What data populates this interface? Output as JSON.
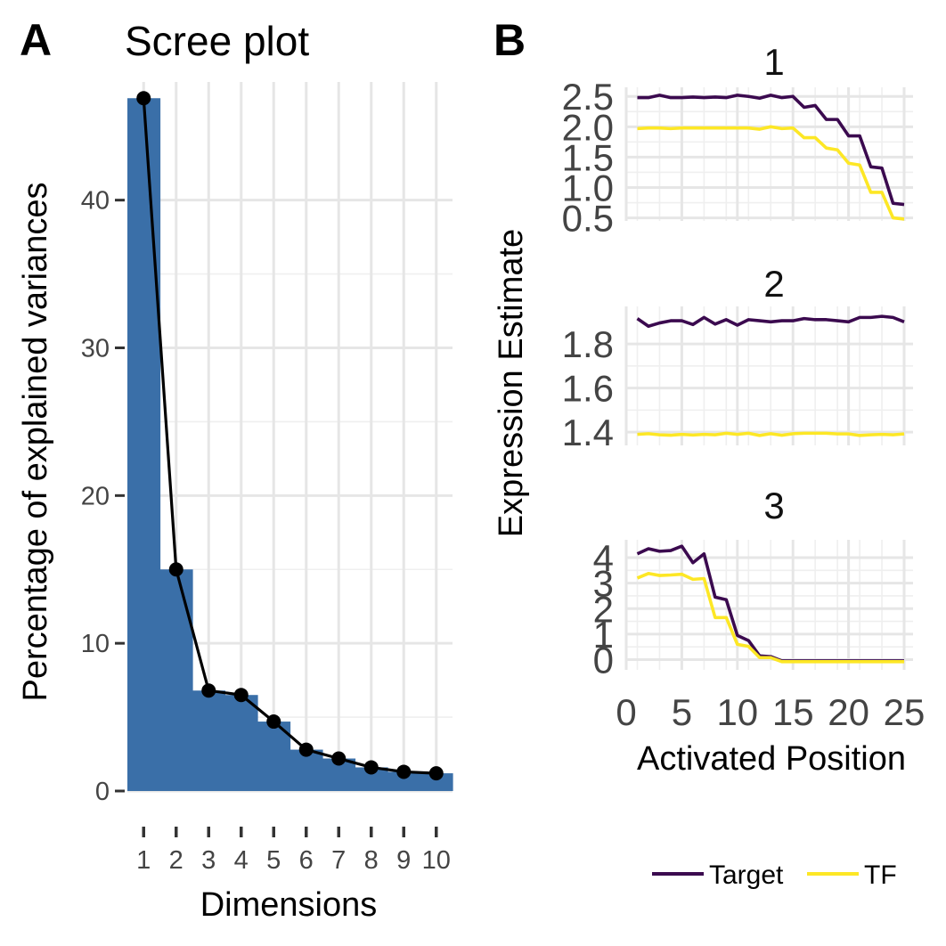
{
  "panel_a": {
    "letter": "A",
    "title": "Scree plot",
    "bar_color": "#3a6fa8",
    "chart_data": {
      "type": "bar",
      "categories": [
        "1",
        "2",
        "3",
        "4",
        "5",
        "6",
        "7",
        "8",
        "9",
        "10"
      ],
      "values": [
        46.9,
        15.0,
        6.8,
        6.5,
        4.7,
        2.8,
        2.2,
        1.6,
        1.3,
        1.2
      ],
      "xlabel": "Dimensions",
      "ylabel": "Percentage of explained variances",
      "ylim": [
        0,
        48
      ],
      "yticks": [
        0,
        10,
        20,
        30,
        40
      ],
      "grid": true,
      "overlay": "line with points"
    }
  },
  "panel_b": {
    "letter": "B",
    "xlabel": "Activated Position",
    "ylabel": "Expression Estimate",
    "xticks": [
      0,
      5,
      10,
      15,
      20,
      25
    ],
    "legend": {
      "placement": "bottom",
      "items": [
        {
          "name": "Target",
          "color": "#3b0a4f"
        },
        {
          "name": "TF",
          "color": "#fde725"
        }
      ]
    },
    "chart_data": [
      {
        "type": "line",
        "title": "1",
        "ylim": [
          0.45,
          2.65
        ],
        "yticks": [
          "0.5",
          "1.0",
          "1.5",
          "2.0",
          "2.5"
        ],
        "x": [
          1,
          2,
          3,
          4,
          5,
          6,
          7,
          8,
          9,
          10,
          11,
          12,
          13,
          14,
          15,
          16,
          17,
          18,
          19,
          20,
          21,
          22,
          23,
          24,
          25
        ],
        "series": [
          {
            "name": "Target",
            "values": [
              2.48,
              2.48,
              2.52,
              2.48,
              2.48,
              2.49,
              2.48,
              2.49,
              2.48,
              2.52,
              2.5,
              2.47,
              2.52,
              2.48,
              2.5,
              2.32,
              2.35,
              2.12,
              2.12,
              1.85,
              1.85,
              1.34,
              1.32,
              0.74,
              0.72
            ]
          },
          {
            "name": "TF",
            "values": [
              1.97,
              1.98,
              1.98,
              1.97,
              1.98,
              1.98,
              1.98,
              1.98,
              1.98,
              1.98,
              1.98,
              1.96,
              2.0,
              1.97,
              1.98,
              1.82,
              1.82,
              1.65,
              1.62,
              1.4,
              1.37,
              0.92,
              0.92,
              0.5,
              0.48
            ]
          }
        ]
      },
      {
        "type": "line",
        "title": "2",
        "ylim": [
          1.34,
          1.97
        ],
        "yticks": [
          "1.4",
          "1.6",
          "1.8"
        ],
        "x": [
          1,
          2,
          3,
          4,
          5,
          6,
          7,
          8,
          9,
          10,
          11,
          12,
          13,
          14,
          15,
          16,
          17,
          18,
          19,
          20,
          21,
          22,
          23,
          24,
          25
        ],
        "series": [
          {
            "name": "Target",
            "values": [
              1.915,
              1.88,
              1.895,
              1.905,
              1.905,
              1.888,
              1.92,
              1.89,
              1.91,
              1.885,
              1.91,
              1.905,
              1.9,
              1.905,
              1.905,
              1.915,
              1.91,
              1.91,
              1.905,
              1.9,
              1.92,
              1.92,
              1.925,
              1.92,
              1.9
            ]
          },
          {
            "name": "TF",
            "values": [
              1.39,
              1.393,
              1.388,
              1.386,
              1.39,
              1.387,
              1.39,
              1.388,
              1.395,
              1.39,
              1.395,
              1.385,
              1.393,
              1.386,
              1.393,
              1.395,
              1.395,
              1.395,
              1.392,
              1.392,
              1.385,
              1.388,
              1.39,
              1.388,
              1.392
            ]
          }
        ]
      },
      {
        "type": "line",
        "title": "3",
        "ylim": [
          -0.4,
          4.7
        ],
        "yticks": [
          "0",
          "1",
          "2",
          "3",
          "4"
        ],
        "x": [
          1,
          2,
          3,
          4,
          5,
          6,
          7,
          8,
          9,
          10,
          11,
          12,
          13,
          14,
          15,
          16,
          17,
          18,
          19,
          20,
          21,
          22,
          23,
          24,
          25
        ],
        "series": [
          {
            "name": "Target",
            "values": [
              4.15,
              4.35,
              4.25,
              4.28,
              4.45,
              3.8,
              4.15,
              2.45,
              2.35,
              0.95,
              0.75,
              0.15,
              0.12,
              -0.05,
              -0.05,
              -0.05,
              -0.05,
              -0.05,
              -0.05,
              -0.05,
              -0.05,
              -0.05,
              -0.05,
              -0.05,
              -0.05
            ]
          },
          {
            "name": "TF",
            "values": [
              3.2,
              3.38,
              3.3,
              3.32,
              3.35,
              3.15,
              3.18,
              1.65,
              1.65,
              0.6,
              0.52,
              0.08,
              0.08,
              -0.08,
              -0.08,
              -0.08,
              -0.08,
              -0.08,
              -0.08,
              -0.08,
              -0.08,
              -0.08,
              -0.08,
              -0.08,
              -0.08
            ]
          }
        ]
      }
    ]
  }
}
